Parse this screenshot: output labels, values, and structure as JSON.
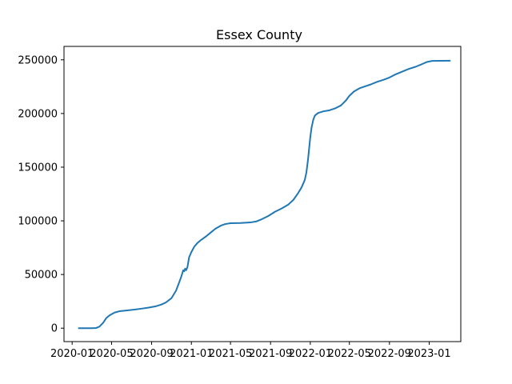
{
  "chart_data": {
    "type": "line",
    "title": "Essex County",
    "xlabel": "",
    "ylabel": "",
    "x_tick_labels": [
      "2020-01",
      "2020-05",
      "2020-09",
      "2021-01",
      "2021-05",
      "2021-09",
      "2022-01",
      "2022-05",
      "2022-09",
      "2023-01"
    ],
    "x_tick_dates": [
      "2020-01-01",
      "2020-05-01",
      "2020-09-01",
      "2021-01-01",
      "2021-05-01",
      "2021-09-01",
      "2022-01-01",
      "2022-05-01",
      "2022-09-01",
      "2023-01-01"
    ],
    "y_ticks": [
      0,
      50000,
      100000,
      150000,
      200000,
      250000
    ],
    "y_tick_labels": [
      "0",
      "50000",
      "100000",
      "150000",
      "200000",
      "250000"
    ],
    "xlim": [
      "2019-12-07",
      "2023-04-08"
    ],
    "ylim": [
      -12500,
      262500
    ],
    "grid": false,
    "line_color": "#1f77b4",
    "series": [
      {
        "points": [
          [
            "2020-01-22",
            0
          ],
          [
            "2020-03-01",
            0
          ],
          [
            "2020-03-15",
            200
          ],
          [
            "2020-03-25",
            1500
          ],
          [
            "2020-04-05",
            5000
          ],
          [
            "2020-04-15",
            9500
          ],
          [
            "2020-04-25",
            12000
          ],
          [
            "2020-05-10",
            14500
          ],
          [
            "2020-05-25",
            15800
          ],
          [
            "2020-06-15",
            16500
          ],
          [
            "2020-07-10",
            17300
          ],
          [
            "2020-08-01",
            18200
          ],
          [
            "2020-08-25",
            19300
          ],
          [
            "2020-09-15",
            20500
          ],
          [
            "2020-10-01",
            22000
          ],
          [
            "2020-10-15",
            24000
          ],
          [
            "2020-11-01",
            28000
          ],
          [
            "2020-11-15",
            35000
          ],
          [
            "2020-11-25",
            43000
          ],
          [
            "2020-12-01",
            48000
          ],
          [
            "2020-12-07",
            54000
          ],
          [
            "2020-12-10",
            53000
          ],
          [
            "2020-12-13",
            55500
          ],
          [
            "2020-12-16",
            54000
          ],
          [
            "2020-12-20",
            57000
          ],
          [
            "2020-12-25",
            66000
          ],
          [
            "2021-01-01",
            71000
          ],
          [
            "2021-01-10",
            76000
          ],
          [
            "2021-01-20",
            79500
          ],
          [
            "2021-02-01",
            82500
          ],
          [
            "2021-02-15",
            85500
          ],
          [
            "2021-03-01",
            89000
          ],
          [
            "2021-03-15",
            92500
          ],
          [
            "2021-04-01",
            95500
          ],
          [
            "2021-04-15",
            97000
          ],
          [
            "2021-05-01",
            97800
          ],
          [
            "2021-06-01",
            98000
          ],
          [
            "2021-07-01",
            98500
          ],
          [
            "2021-07-20",
            99500
          ],
          [
            "2021-08-05",
            101500
          ],
          [
            "2021-08-25",
            104500
          ],
          [
            "2021-09-15",
            108500
          ],
          [
            "2021-10-05",
            111500
          ],
          [
            "2021-10-25",
            115000
          ],
          [
            "2021-11-10",
            119500
          ],
          [
            "2021-11-25",
            126000
          ],
          [
            "2021-12-05",
            131000
          ],
          [
            "2021-12-15",
            138000
          ],
          [
            "2021-12-20",
            145000
          ],
          [
            "2021-12-25",
            157000
          ],
          [
            "2021-12-28",
            166000
          ],
          [
            "2022-01-01",
            178000
          ],
          [
            "2022-01-05",
            187000
          ],
          [
            "2022-01-10",
            194000
          ],
          [
            "2022-01-15",
            198000
          ],
          [
            "2022-01-25",
            200500
          ],
          [
            "2022-02-10",
            202000
          ],
          [
            "2022-03-01",
            203000
          ],
          [
            "2022-03-20",
            205000
          ],
          [
            "2022-04-05",
            207500
          ],
          [
            "2022-04-20",
            212000
          ],
          [
            "2022-05-01",
            216500
          ],
          [
            "2022-05-15",
            220500
          ],
          [
            "2022-06-01",
            223500
          ],
          [
            "2022-06-20",
            225500
          ],
          [
            "2022-07-05",
            227000
          ],
          [
            "2022-07-25",
            229500
          ],
          [
            "2022-08-15",
            231500
          ],
          [
            "2022-09-01",
            233500
          ],
          [
            "2022-09-20",
            236500
          ],
          [
            "2022-10-10",
            239000
          ],
          [
            "2022-10-30",
            241500
          ],
          [
            "2022-11-20",
            243500
          ],
          [
            "2022-12-10",
            246000
          ],
          [
            "2022-12-25",
            248000
          ],
          [
            "2023-01-10",
            249000
          ],
          [
            "2023-03-05",
            249200
          ]
        ]
      }
    ]
  }
}
